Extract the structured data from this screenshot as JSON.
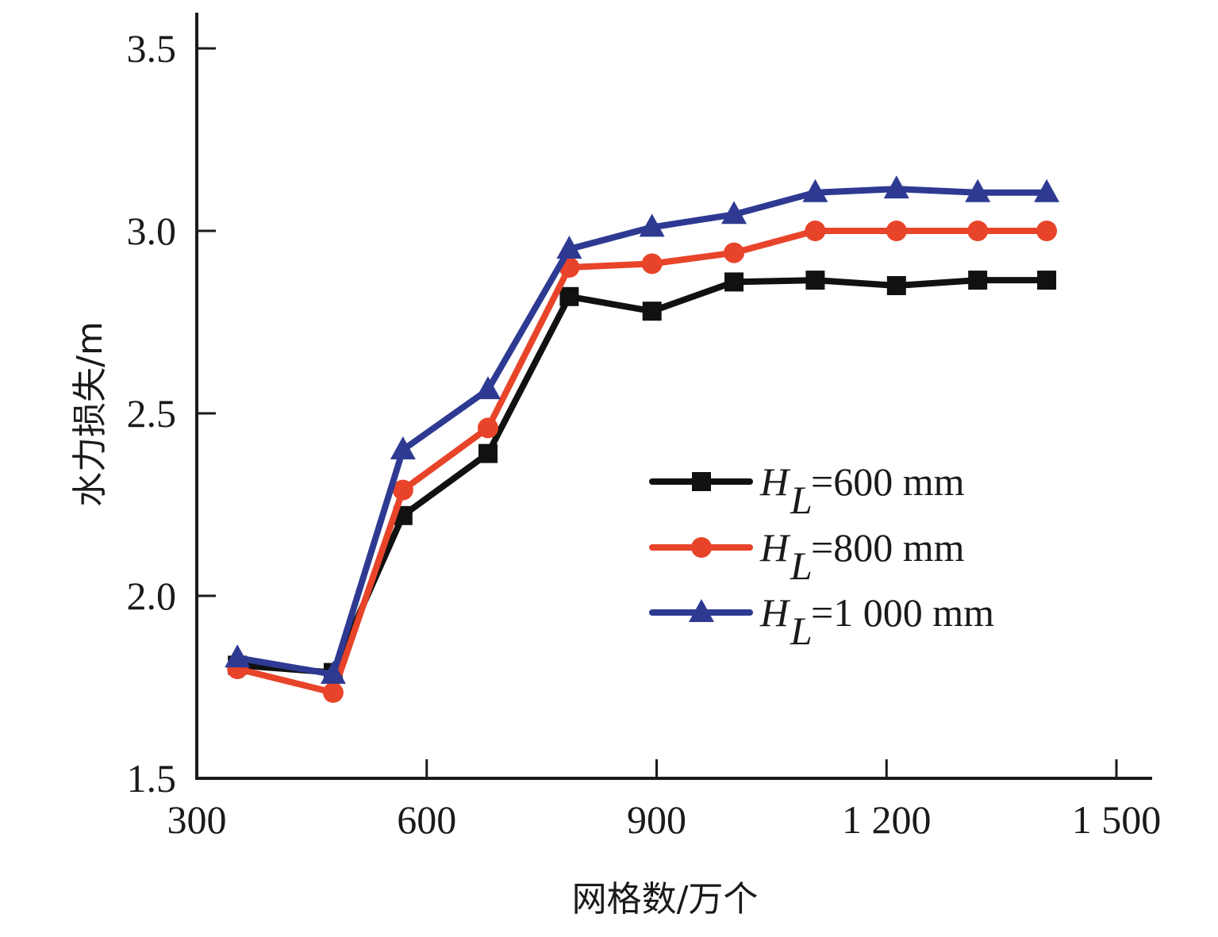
{
  "chart_data": {
    "type": "line",
    "title": "",
    "xlabel": "网格数/万个",
    "ylabel": "水力损失/m",
    "xlim": [
      300,
      1500
    ],
    "ylim": [
      1.5,
      3.6
    ],
    "xticks": [
      300,
      600,
      900,
      1200,
      1500
    ],
    "xtick_labels": [
      "300",
      "600",
      "900",
      "1 200",
      "1 500"
    ],
    "yticks": [
      1.5,
      2.0,
      2.5,
      3.0,
      3.5
    ],
    "ytick_labels": [
      "1.5",
      "2.0",
      "2.5",
      "3.0",
      "3.5"
    ],
    "grid": false,
    "legend_position": "center-right",
    "x": [
      353,
      478,
      569,
      680,
      786,
      894,
      1001,
      1107,
      1213,
      1319,
      1409
    ],
    "series": [
      {
        "name": "HL=600 mm",
        "label_symbol": "H",
        "label_sub": "L",
        "label_text": "=600 mm",
        "color": "#111111",
        "marker": "square",
        "values": [
          1.81,
          1.79,
          2.22,
          2.39,
          2.82,
          2.78,
          2.86,
          2.865,
          2.85,
          2.865,
          2.865
        ]
      },
      {
        "name": "HL=800 mm",
        "label_symbol": "H",
        "label_sub": "L",
        "label_text": "=800 mm",
        "color": "#e8442a",
        "marker": "circle",
        "values": [
          1.8,
          1.735,
          2.29,
          2.46,
          2.9,
          2.91,
          2.94,
          3.0,
          3.0,
          3.0,
          3.0
        ]
      },
      {
        "name": "HL=1 000 mm",
        "label_symbol": "H",
        "label_sub": "L",
        "label_text": "=1 000 mm",
        "color": "#2e3a92",
        "marker": "triangle",
        "values": [
          1.83,
          1.785,
          2.4,
          2.565,
          2.95,
          3.01,
          3.045,
          3.105,
          3.115,
          3.105,
          3.105
        ]
      }
    ]
  }
}
